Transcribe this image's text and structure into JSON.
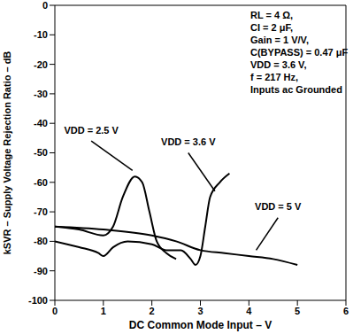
{
  "chart_data": {
    "type": "line",
    "x_label": "DC Common Mode Input – V",
    "y_label": "kSVR – Supply Voltage Rejection Ratio – dB",
    "annotations": [
      "RL = 4 Ω,",
      "CI = 2 μF,",
      "Gain = 1 V/V,",
      "C(BYPASS) = 0.47 μF",
      "VDD = 3.6 V,",
      "f = 217 Hz,",
      "Inputs ac Grounded"
    ],
    "xlim": [
      0,
      6
    ],
    "xticks": [
      0,
      1,
      2,
      3,
      4,
      5,
      6
    ],
    "ylim": [
      -100,
      0
    ],
    "yticks": [
      -100,
      -90,
      -80,
      -70,
      -60,
      -50,
      -40,
      -30,
      -20,
      -10,
      0
    ],
    "grid": false,
    "series": [
      {
        "name": "VDD = 2.5 V",
        "color": "#000000",
        "x": [
          0,
          0.5,
          1.0,
          1.2,
          1.4,
          1.65,
          1.8,
          1.95,
          2.1,
          2.3,
          2.5
        ],
        "values": [
          -75,
          -76,
          -78,
          -75,
          -65,
          -58,
          -60,
          -70,
          -80,
          -84,
          -86
        ]
      },
      {
        "name": "VDD = 3.6 V",
        "color": "#000000",
        "x": [
          0,
          0.5,
          0.9,
          1.0,
          1.2,
          1.5,
          2.0,
          2.3,
          2.6,
          2.8,
          2.9,
          3.0,
          3.1,
          3.2,
          3.4,
          3.6
        ],
        "values": [
          -80,
          -82,
          -84,
          -85,
          -82,
          -80,
          -81,
          -83,
          -83,
          -86,
          -88,
          -85,
          -75,
          -65,
          -60,
          -57
        ]
      },
      {
        "name": "VDD = 5 V",
        "color": "#000000",
        "x": [
          0,
          1.0,
          2.0,
          2.5,
          3.0,
          3.5,
          4.0,
          4.5,
          5.0
        ],
        "values": [
          -75,
          -76,
          -78,
          -80,
          -83,
          -84,
          -85,
          -86,
          -88
        ]
      }
    ]
  }
}
